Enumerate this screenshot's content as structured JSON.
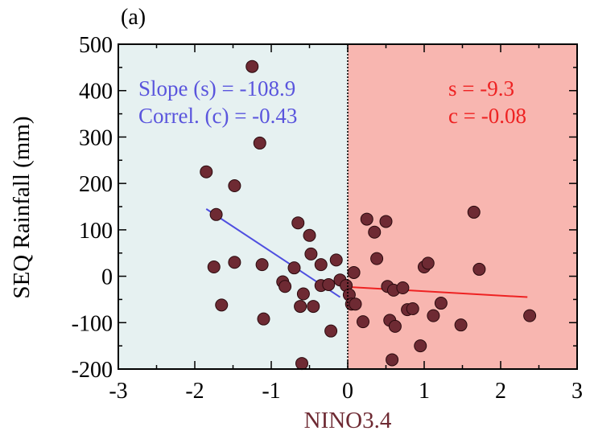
{
  "panel_label": "(a)",
  "chart_data": {
    "type": "scatter",
    "title": "",
    "xlabel": "NINO3.4",
    "ylabel": "SEQ Rainfall (mm)",
    "xlim": [
      -3,
      3
    ],
    "ylim": [
      -200,
      500
    ],
    "x_ticks": [
      "-3",
      "-2",
      "-1",
      "0",
      "1",
      "2",
      "3"
    ],
    "y_ticks": [
      "-200",
      "-100",
      "0",
      "100",
      "200",
      "300",
      "400",
      "500"
    ],
    "divider_x": 0,
    "grid": false,
    "regions": [
      {
        "name": "negative",
        "x_range": [
          -3,
          0
        ],
        "color": "#e6f1f1"
      },
      {
        "name": "positive",
        "x_range": [
          0,
          3
        ],
        "color": "#f8b6b0"
      }
    ],
    "annotations": [
      {
        "text": "Slope (s) = -108.9",
        "color": "#5a55dd",
        "side": "left"
      },
      {
        "text": "Correl. (c) = -0.43",
        "color": "#5a55dd",
        "side": "left"
      },
      {
        "text": "s = -9.3",
        "color": "#ee2222",
        "side": "right"
      },
      {
        "text": "c = -0.08",
        "color": "#ee2222",
        "side": "right"
      }
    ],
    "marker_color": "#6e2a33",
    "fit_lines": [
      {
        "name": "negative-fit",
        "color": "#4f4fe0",
        "x": [
          -1.85,
          -0.1
        ],
        "y": [
          145,
          -45
        ]
      },
      {
        "name": "positive-fit",
        "color": "#ee2222",
        "x": [
          0.0,
          2.35
        ],
        "y": [
          -23,
          -45
        ]
      }
    ],
    "series": [
      {
        "points": [
          [
            -1.85,
            225
          ],
          [
            -1.72,
            133
          ],
          [
            -1.75,
            20
          ],
          [
            -1.65,
            -62
          ],
          [
            -1.48,
            195
          ],
          [
            -1.48,
            30
          ],
          [
            -1.25,
            452
          ],
          [
            -1.15,
            287
          ],
          [
            -1.12,
            25
          ],
          [
            -1.1,
            -92
          ],
          [
            -0.85,
            -12
          ],
          [
            -0.82,
            -22
          ],
          [
            -0.7,
            18
          ],
          [
            -0.65,
            115
          ],
          [
            -0.62,
            -65
          ],
          [
            -0.58,
            -38
          ],
          [
            -0.6,
            -188
          ],
          [
            -0.5,
            88
          ],
          [
            -0.48,
            48
          ],
          [
            -0.45,
            -65
          ],
          [
            -0.35,
            25
          ],
          [
            -0.35,
            -20
          ],
          [
            -0.25,
            -18
          ],
          [
            -0.22,
            -118
          ],
          [
            -0.15,
            35
          ],
          [
            -0.1,
            -8
          ],
          [
            -0.02,
            -20
          ],
          [
            0.02,
            -40
          ],
          [
            0.05,
            -60
          ],
          [
            0.08,
            8
          ],
          [
            0.1,
            -60
          ],
          [
            0.2,
            -98
          ],
          [
            0.25,
            123
          ],
          [
            0.35,
            95
          ],
          [
            0.38,
            38
          ],
          [
            0.5,
            118
          ],
          [
            0.52,
            -22
          ],
          [
            0.55,
            -95
          ],
          [
            0.6,
            -30
          ],
          [
            0.58,
            -180
          ],
          [
            0.62,
            -108
          ],
          [
            0.72,
            -25
          ],
          [
            0.78,
            -72
          ],
          [
            0.85,
            -70
          ],
          [
            0.95,
            -150
          ],
          [
            1.0,
            20
          ],
          [
            1.05,
            28
          ],
          [
            1.12,
            -85
          ],
          [
            1.22,
            -58
          ],
          [
            1.48,
            -105
          ],
          [
            1.65,
            138
          ],
          [
            1.72,
            15
          ],
          [
            2.38,
            -85
          ]
        ]
      }
    ]
  }
}
